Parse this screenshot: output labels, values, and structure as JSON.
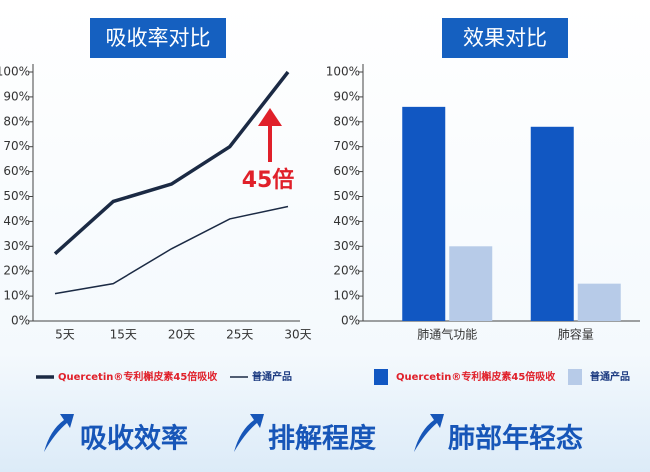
{
  "chart_data": [
    {
      "type": "line",
      "title": "吸收率对比",
      "categories": [
        "5天",
        "15天",
        "20天",
        "25天",
        "30天"
      ],
      "series": [
        {
          "name": "Quercetin®专利槲皮素45倍吸收",
          "color": "#1b2a44",
          "values": [
            27,
            48,
            55,
            70,
            100
          ]
        },
        {
          "name": "普通产品",
          "color": "#1b2a44",
          "values": [
            11,
            15,
            29,
            41,
            46
          ]
        }
      ],
      "annotation": "45倍",
      "ylim": [
        0,
        100
      ],
      "yticks": [
        {
          "value": 0,
          "label": "0%"
        },
        {
          "value": 10,
          "label": "10%"
        },
        {
          "value": 20,
          "label": "20%"
        },
        {
          "value": 30,
          "label": "30%"
        },
        {
          "value": 40,
          "label": "40%"
        },
        {
          "value": 50,
          "label": "50%"
        },
        {
          "value": 60,
          "label": "60%"
        },
        {
          "value": 70,
          "label": "70%"
        },
        {
          "value": 80,
          "label": "80%"
        },
        {
          "value": 90,
          "label": "90%"
        },
        {
          "value": 100,
          "label": "100%"
        }
      ]
    },
    {
      "type": "bar",
      "title": "效果对比",
      "categories": [
        "肺通气功能",
        "肺容量"
      ],
      "series": [
        {
          "name": "Quercetin®专利槲皮素45倍吸收",
          "color": "#1157c2",
          "values": [
            86,
            78
          ]
        },
        {
          "name": "普通产品",
          "color": "#b7cbe8",
          "values": [
            30,
            15
          ]
        }
      ],
      "ylim": [
        0,
        100
      ],
      "yticks": [
        {
          "value": 0,
          "label": "0%"
        },
        {
          "value": 10,
          "label": "10%"
        },
        {
          "value": 20,
          "label": "20%"
        },
        {
          "value": 30,
          "label": "30%"
        },
        {
          "value": 40,
          "label": "40%"
        },
        {
          "value": 50,
          "label": "50%"
        },
        {
          "value": 60,
          "label": "60%"
        },
        {
          "value": 70,
          "label": "70%"
        },
        {
          "value": 80,
          "label": "80%"
        },
        {
          "value": 90,
          "label": "90%"
        },
        {
          "value": 100,
          "label": "100%"
        }
      ]
    }
  ],
  "footer": {
    "items": [
      "吸收效率",
      "排解程度",
      "肺部年轻态"
    ]
  }
}
